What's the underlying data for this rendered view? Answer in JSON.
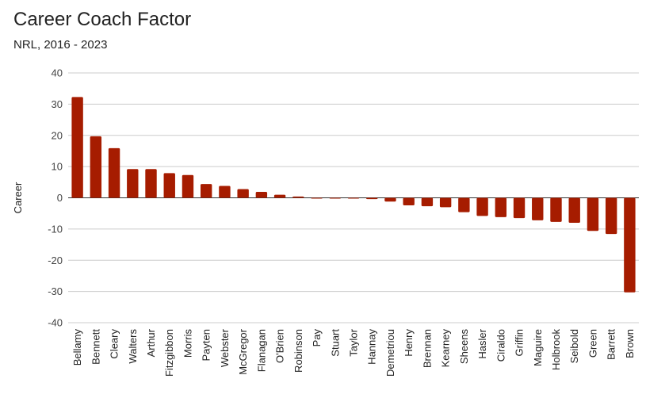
{
  "chart_data": {
    "type": "bar",
    "title": "Career Coach Factor",
    "subtitle": "NRL, 2016 - 2023",
    "xlabel": "",
    "ylabel": "Career",
    "ylim": [
      -40,
      40
    ],
    "yticks": [
      40,
      30,
      20,
      10,
      0,
      -10,
      -20,
      -30,
      -40
    ],
    "grid": true,
    "bar_color": "#A61C00",
    "categories": [
      "Bellamy",
      "Bennett",
      "Cleary",
      "Walters",
      "Arthur",
      "Fitzgibbon",
      "Morris",
      "Payten",
      "Webster",
      "McGregor",
      "Flanagan",
      "O'Brien",
      "Robinson",
      "Pay",
      "Stuart",
      "Taylor",
      "Hannay",
      "Demetriou",
      "Henry",
      "Brennan",
      "Kearney",
      "Sheens",
      "Hasler",
      "Ciraldo",
      "Griffin",
      "Maguire",
      "Holbrook",
      "Seibold",
      "Green",
      "Barrett",
      "Brown"
    ],
    "values": [
      32.3,
      19.7,
      15.9,
      9.2,
      9.2,
      7.9,
      7.3,
      4.4,
      3.8,
      2.8,
      1.9,
      1.0,
      0.4,
      -0.2,
      -0.2,
      -0.1,
      -0.4,
      -1.2,
      -2.4,
      -2.7,
      -3.0,
      -4.6,
      -5.8,
      -6.2,
      -6.5,
      -7.2,
      -7.7,
      -8.0,
      -10.6,
      -11.6,
      -30.3
    ]
  }
}
